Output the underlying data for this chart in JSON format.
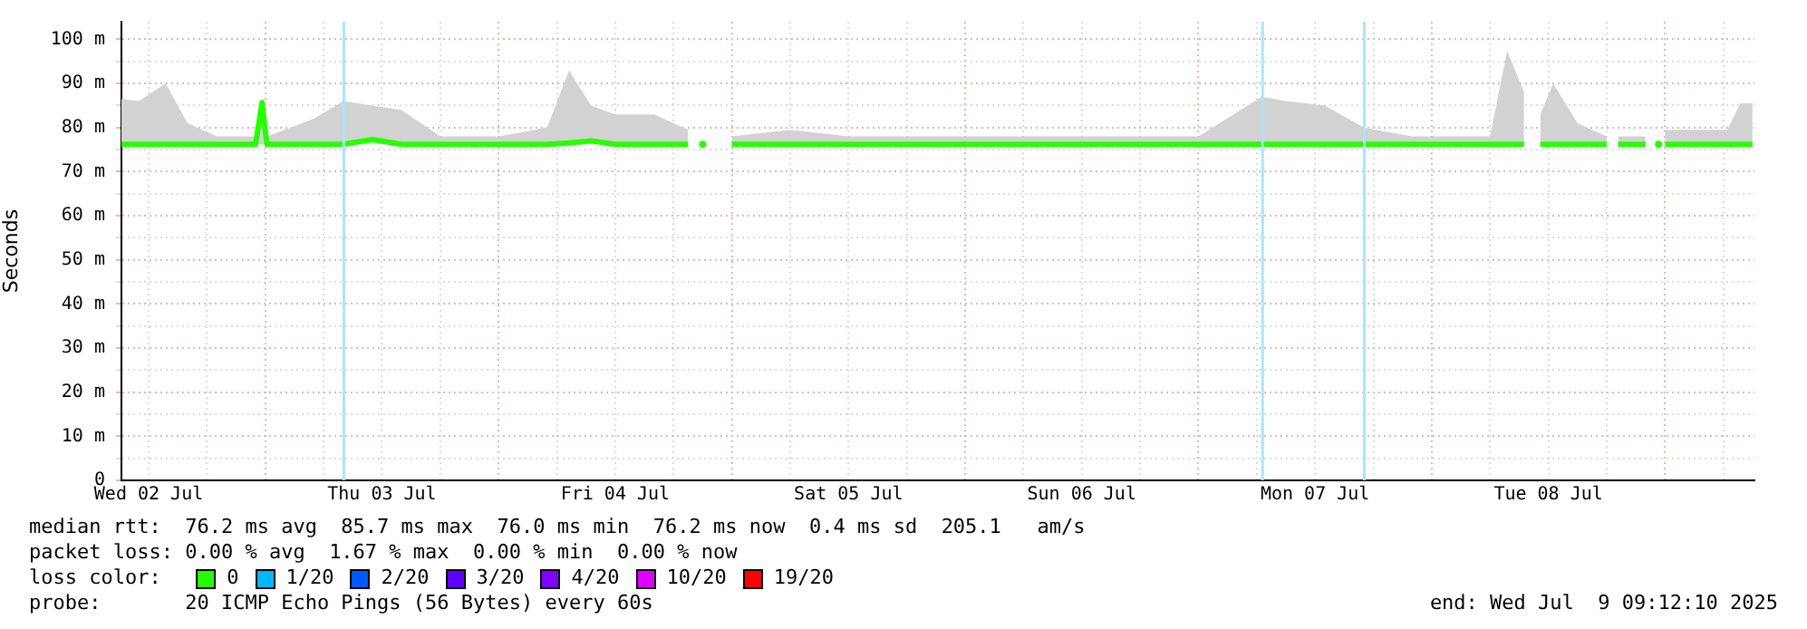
{
  "chart_data": {
    "type": "line",
    "ylabel": "Seconds",
    "legend_title": "loss color:",
    "legend": "bottom",
    "grid": true,
    "marker": "none",
    "line_style": "solid",
    "xlim": [
      "2025-07-02T09:12",
      "2025-07-09T09:12"
    ],
    "xticks": [
      {
        "value": "2025-07-02T12:00",
        "label": "Wed 02 Jul"
      },
      {
        "value": "2025-07-02T18:00",
        "label": null
      },
      {
        "value": "2025-07-03T00:00",
        "label": null
      },
      {
        "value": "2025-07-03T06:00",
        "label": null
      },
      {
        "value": "2025-07-03T12:00",
        "label": "Thu 03 Jul"
      },
      {
        "value": "2025-07-03T18:00",
        "label": null
      },
      {
        "value": "2025-07-04T00:00",
        "label": null
      },
      {
        "value": "2025-07-04T06:00",
        "label": null
      },
      {
        "value": "2025-07-04T12:00",
        "label": "Fri 04 Jul"
      },
      {
        "value": "2025-07-04T18:00",
        "label": null
      },
      {
        "value": "2025-07-05T00:00",
        "label": null
      },
      {
        "value": "2025-07-05T06:00",
        "label": null
      },
      {
        "value": "2025-07-05T12:00",
        "label": "Sat 05 Jul"
      },
      {
        "value": "2025-07-05T18:00",
        "label": null
      },
      {
        "value": "2025-07-06T00:00",
        "label": null
      },
      {
        "value": "2025-07-06T06:00",
        "label": null
      },
      {
        "value": "2025-07-06T12:00",
        "label": "Sun 06 Jul"
      },
      {
        "value": "2025-07-06T18:00",
        "label": null
      },
      {
        "value": "2025-07-07T00:00",
        "label": null
      },
      {
        "value": "2025-07-07T06:00",
        "label": null
      },
      {
        "value": "2025-07-07T12:00",
        "label": "Mon 07 Jul"
      },
      {
        "value": "2025-07-07T18:00",
        "label": null
      },
      {
        "value": "2025-07-08T00:00",
        "label": null
      },
      {
        "value": "2025-07-08T06:00",
        "label": null
      },
      {
        "value": "2025-07-08T12:00",
        "label": "Tue 08 Jul"
      },
      {
        "value": "2025-07-08T18:00",
        "label": null
      },
      {
        "value": "2025-07-09T00:00",
        "label": null
      },
      {
        "value": "2025-07-09T06:00",
        "label": null
      }
    ],
    "ylim": [
      0,
      104
    ],
    "yticks": [
      {
        "value": 0,
        "label": "0"
      },
      {
        "value": 5,
        "label": null
      },
      {
        "value": 10,
        "label": "10 m"
      },
      {
        "value": 15,
        "label": null
      },
      {
        "value": 20,
        "label": "20 m"
      },
      {
        "value": 25,
        "label": null
      },
      {
        "value": 30,
        "label": "30 m"
      },
      {
        "value": 35,
        "label": null
      },
      {
        "value": 40,
        "label": "40 m"
      },
      {
        "value": 45,
        "label": null
      },
      {
        "value": 50,
        "label": "50 m"
      },
      {
        "value": 55,
        "label": null
      },
      {
        "value": 60,
        "label": "60 m"
      },
      {
        "value": 65,
        "label": null
      },
      {
        "value": 70,
        "label": "70 m"
      },
      {
        "value": 75,
        "label": null
      },
      {
        "value": 80,
        "label": "80 m"
      },
      {
        "value": 85,
        "label": null
      },
      {
        "value": 90,
        "label": "90 m"
      },
      {
        "value": 95,
        "label": null
      },
      {
        "value": 100,
        "label": "100 m"
      }
    ],
    "series": [
      {
        "name": "0",
        "color": "#26ff00",
        "x": [
          "2025-07-02T09:12",
          "2025-07-02T11:00",
          "2025-07-02T13:45",
          "2025-07-02T16:00",
          "2025-07-02T19:00",
          "2025-07-02T23:00",
          "2025-07-02T23:40",
          "2025-07-03T00:10",
          "2025-07-03T05:00",
          "2025-07-03T08:00",
          "2025-07-03T11:00",
          "2025-07-03T14:00",
          "2025-07-03T18:00",
          "2025-07-04T00:00",
          "2025-07-04T05:00",
          "2025-07-04T07:15",
          "2025-07-04T09:30",
          "2025-07-04T12:00",
          "2025-07-04T16:00",
          "2025-07-04T19:30",
          "2025-07-04T20:15",
          "2025-07-04T21:00",
          "2025-07-04T22:00",
          "2025-07-05T00:00",
          "2025-07-05T06:00",
          "2025-07-05T12:00",
          "2025-07-05T18:00",
          "2025-07-06T00:00",
          "2025-07-06T06:00",
          "2025-07-06T12:00",
          "2025-07-06T18:00",
          "2025-07-07T00:00",
          "2025-07-07T06:30",
          "2025-07-07T09:00",
          "2025-07-07T13:00",
          "2025-07-07T17:00",
          "2025-07-07T22:00",
          "2025-07-08T06:00",
          "2025-07-08T07:45",
          "2025-07-08T09:30",
          "2025-07-08T10:10",
          "2025-07-08T11:10",
          "2025-07-08T12:30",
          "2025-07-08T15:00",
          "2025-07-08T18:00",
          "2025-07-08T18:30",
          "2025-07-08T19:10",
          "2025-07-08T22:00",
          "2025-07-08T22:30",
          "2025-07-08T23:20",
          "2025-07-08T23:40",
          "2025-07-09T00:00",
          "2025-07-09T06:25",
          "2025-07-09T07:45",
          "2025-07-09T09:00"
        ],
        "values": [
          76.2,
          76.2,
          76.2,
          76.2,
          76.2,
          76.2,
          85.7,
          76.2,
          76.2,
          76.2,
          77.3,
          76.2,
          76.2,
          76.2,
          76.2,
          76.5,
          77.0,
          76.2,
          76.2,
          76.2,
          null,
          76.2,
          null,
          76.2,
          76.2,
          76.2,
          76.2,
          76.2,
          76.2,
          76.2,
          76.2,
          76.2,
          76.2,
          76.2,
          76.2,
          76.2,
          76.2,
          76.2,
          76.2,
          76.2,
          null,
          76.2,
          76.2,
          76.2,
          76.2,
          null,
          76.2,
          76.2,
          null,
          76.2,
          null,
          76.2,
          76.2,
          76.2,
          76.2
        ],
        "lower": [
          76.2,
          76.2,
          76.2,
          76.2,
          76.2,
          76.2,
          76.2,
          76.2,
          76.2,
          76.2,
          76.2,
          76.2,
          76.2,
          76.2,
          76.2,
          76.2,
          76.2,
          76.2,
          76.2,
          76.2,
          null,
          null,
          null,
          76.2,
          76.2,
          76.2,
          76.2,
          76.2,
          76.2,
          76.2,
          76.2,
          76.2,
          76.2,
          76.2,
          76.2,
          76.2,
          76.2,
          76.2,
          76.2,
          76.2,
          null,
          76.2,
          76.2,
          76.2,
          76.2,
          null,
          76.2,
          76.2,
          null,
          null,
          null,
          76.2,
          76.2,
          76.2,
          76.2
        ],
        "upper": [
          86.5,
          86,
          90,
          81,
          78,
          78,
          86,
          78,
          82,
          86,
          85,
          84,
          78,
          78,
          80,
          93,
          85,
          83,
          83,
          79.5,
          null,
          null,
          null,
          78,
          79.5,
          78,
          78,
          78,
          78,
          78,
          78,
          78,
          87,
          86,
          85,
          80,
          78,
          78,
          97.5,
          88,
          null,
          83,
          90,
          81,
          78,
          null,
          78,
          78,
          null,
          null,
          null,
          79.5,
          79.5,
          85.5,
          85.5
        ]
      },
      {
        "name": "1/20",
        "color": "#00b8ff"
      },
      {
        "name": "2/20",
        "color": "#0059ff"
      },
      {
        "name": "3/20",
        "color": "#5e00ff"
      },
      {
        "name": "4/20",
        "color": "#7e00ff"
      },
      {
        "name": "10/20",
        "color": "#dd00ff"
      },
      {
        "name": "19/20",
        "color": "#ff0000"
      }
    ],
    "ref_lines": [
      {
        "axis": "x",
        "value": "2025-07-03T08:05",
        "label": null,
        "color": "#a8e6ff"
      },
      {
        "axis": "x",
        "value": "2025-07-07T06:36",
        "label": null,
        "color": "#a8e6ff"
      },
      {
        "axis": "x",
        "value": "2025-07-07T17:04",
        "label": null,
        "color": "#a8e6ff"
      }
    ],
    "annotations": [
      "median rtt:  76.2 ms avg  85.7 ms max  76.0 ms min  76.2 ms now  0.4 ms sd  205.1   am/s",
      "packet loss: 0.00 % avg  1.67 % max  0.00 % min  0.00 % now",
      "probe:       20 ICMP Echo Pings (56 Bytes) every 60s",
      "end: Wed Jul  9 09:12:10 2025"
    ]
  }
}
